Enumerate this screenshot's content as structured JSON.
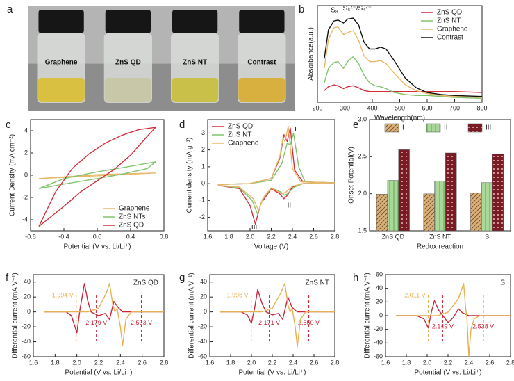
{
  "chart_data": [
    {
      "type": "image",
      "panel": "a",
      "labels": [
        "Graphene",
        "ZnS QD",
        "ZnS NT",
        "Contrast"
      ]
    },
    {
      "type": "line",
      "panel": "b",
      "xlabel": "Wavelength(nm)",
      "ylabel": "Absorbance(a.u.)",
      "xlim": [
        200,
        800
      ],
      "xticks": [
        200,
        300,
        400,
        500,
        600,
        700,
        800
      ],
      "ylim": [
        0,
        1
      ],
      "legend": "upper right",
      "annotations": [
        "S₈",
        "S₆²⁻/S₄²⁻"
      ],
      "series": [
        {
          "name": "ZnS QD",
          "color": "#d22f3c",
          "x": [
            225,
            240,
            260,
            275,
            295,
            310,
            330,
            350,
            370,
            390,
            410,
            430,
            450,
            480,
            520,
            560,
            600,
            650,
            700,
            800
          ],
          "values": [
            0.12,
            0.16,
            0.18,
            0.17,
            0.14,
            0.16,
            0.17,
            0.15,
            0.12,
            0.11,
            0.11,
            0.11,
            0.11,
            0.11,
            0.11,
            0.11,
            0.11,
            0.11,
            0.11,
            0.1
          ]
        },
        {
          "name": "ZnS NT",
          "color": "#82c46e",
          "x": [
            225,
            240,
            260,
            275,
            295,
            310,
            330,
            350,
            370,
            390,
            410,
            430,
            450,
            480,
            520,
            560,
            600,
            650,
            700,
            800
          ],
          "values": [
            0.2,
            0.35,
            0.41,
            0.42,
            0.35,
            0.42,
            0.47,
            0.4,
            0.28,
            0.2,
            0.17,
            0.16,
            0.14,
            0.1,
            0.08,
            0.07,
            0.07,
            0.06,
            0.05,
            0.04
          ]
        },
        {
          "name": "Graphene",
          "color": "#e8b868",
          "x": [
            225,
            240,
            260,
            275,
            295,
            310,
            330,
            350,
            370,
            390,
            410,
            430,
            450,
            480,
            520,
            560,
            600,
            650,
            700,
            800
          ],
          "values": [
            0.35,
            0.65,
            0.77,
            0.78,
            0.7,
            0.72,
            0.74,
            0.64,
            0.48,
            0.42,
            0.42,
            0.43,
            0.4,
            0.3,
            0.18,
            0.12,
            0.09,
            0.07,
            0.06,
            0.05
          ]
        },
        {
          "name": "Contrast",
          "color": "#111111",
          "x": [
            225,
            240,
            260,
            275,
            295,
            310,
            330,
            350,
            370,
            390,
            410,
            430,
            450,
            480,
            520,
            560,
            600,
            650,
            700,
            800
          ],
          "values": [
            0.45,
            0.75,
            0.84,
            0.85,
            0.82,
            0.86,
            0.87,
            0.8,
            0.62,
            0.55,
            0.55,
            0.57,
            0.55,
            0.43,
            0.25,
            0.15,
            0.1,
            0.08,
            0.07,
            0.06
          ]
        }
      ]
    },
    {
      "type": "line",
      "panel": "c",
      "xlabel": "Potential (V vs. Li/Li⁺)",
      "ylabel": "Current Density (mA cm⁻²)",
      "xlim": [
        -0.8,
        0.8
      ],
      "xticks": [
        -0.8,
        -0.4,
        {
          "value": 0,
          "label": "0.0"
        },
        0.4,
        0.8
      ],
      "ylim": [
        -5,
        5
      ],
      "yticks": [
        -4,
        -2,
        0,
        2,
        4
      ],
      "legend": "lower right",
      "series": [
        {
          "name": "Graphene",
          "color": "#e8b868",
          "x": [
            -0.7,
            0,
            0.7,
            0,
            -0.7
          ],
          "values": [
            -0.3,
            -0.05,
            0.2,
            0.05,
            -0.3
          ]
        },
        {
          "name": "ZnS NTs",
          "color": "#82c46e",
          "x": [
            -0.7,
            -0.4,
            0,
            0.4,
            0.7,
            0.6,
            0.3,
            0,
            -0.4,
            -0.7
          ],
          "values": [
            -1.2,
            -0.3,
            0.3,
            0.8,
            1.2,
            0.6,
            0.1,
            -0.3,
            -0.8,
            -1.2
          ]
        },
        {
          "name": "ZnS QD",
          "color": "#d22f3c",
          "x": [
            -0.7,
            -0.5,
            -0.3,
            -0.1,
            0.1,
            0.3,
            0.5,
            0.7,
            0.6,
            0.4,
            0.2,
            0,
            -0.2,
            -0.4,
            -0.6,
            -0.7
          ],
          "values": [
            -4.6,
            -1.5,
            0.6,
            1.9,
            2.9,
            3.6,
            4.1,
            4.3,
            3.5,
            1.8,
            0.5,
            -0.5,
            -1.5,
            -2.8,
            -4,
            -4.6
          ]
        }
      ]
    },
    {
      "type": "line",
      "panel": "d",
      "xlabel": "Voltage (V)",
      "ylabel": "Current density (mA g⁻¹)",
      "xlim": [
        1.6,
        2.8
      ],
      "xticks": [
        1.6,
        1.8,
        {
          "value": 2,
          "label": "2.0"
        },
        2.2,
        2.4,
        2.6,
        2.8
      ],
      "ylim": [
        -2.8,
        3.8
      ],
      "yticks": [
        -2,
        -1,
        0,
        1,
        2,
        3
      ],
      "legend": "upper left",
      "annotations": [
        "I",
        "II",
        "III"
      ],
      "series": [
        {
          "name": "ZnS QD",
          "color": "#d22f3c",
          "x": [
            2.8,
            2.5,
            2.4,
            2.35,
            2.32,
            2.28,
            2.2,
            2.1,
            2.05,
            2,
            1.9,
            1.7,
            1.7,
            2,
            2.2,
            2.28,
            2.32,
            2.35,
            2.38,
            2.42,
            2.5,
            2.8
          ],
          "values": [
            0.05,
            0,
            -0.2,
            -0.7,
            -0.9,
            -0.6,
            -0.3,
            -1.2,
            -2.4,
            -1.3,
            -0.3,
            -0.1,
            -0.05,
            0,
            0.3,
            1.5,
            2.9,
            2.5,
            3.3,
            0.8,
            0.1,
            0.05
          ]
        },
        {
          "name": "ZnS NT",
          "color": "#82c46e",
          "x": [
            2.8,
            2.5,
            2.42,
            2.36,
            2.33,
            2.29,
            2.2,
            2.12,
            2.07,
            2.02,
            1.9,
            1.7,
            1.7,
            2,
            2.2,
            2.3,
            2.35,
            2.38,
            2.41,
            2.46,
            2.52,
            2.8
          ],
          "values": [
            0.05,
            0,
            -0.2,
            -0.55,
            -0.7,
            -0.5,
            -0.25,
            -0.9,
            -1.8,
            -1,
            -0.25,
            -0.1,
            -0.05,
            0,
            0.2,
            1.2,
            2.4,
            2.3,
            3,
            1,
            0.1,
            0.05
          ]
        },
        {
          "name": "Graphene",
          "color": "#e8b868",
          "x": [
            2.8,
            2.5,
            2.4,
            2.34,
            2.3,
            2.26,
            2.2,
            2.13,
            2.08,
            2.03,
            1.9,
            1.7,
            1.7,
            2,
            2.2,
            2.28,
            2.31,
            2.33,
            2.36,
            2.4,
            2.48,
            2.8
          ],
          "values": [
            0.05,
            0,
            -0.15,
            -0.5,
            -0.6,
            -0.45,
            -0.25,
            -0.8,
            -1.6,
            -0.9,
            -0.2,
            -0.1,
            -0.05,
            0,
            0.3,
            1.6,
            2.7,
            2.5,
            3.4,
            0.9,
            0.1,
            0.05
          ]
        }
      ]
    },
    {
      "type": "bar",
      "panel": "e",
      "xlabel": "Redox reaction",
      "ylabel": "Onset Potential(V)",
      "categories": [
        "ZnS QD",
        "ZnS NT",
        "S"
      ],
      "ylim": [
        1.5,
        3.0
      ],
      "yticks": [
        1.5,
        {
          "value": 2,
          "label": "2.0"
        },
        2.5,
        {
          "value": 3,
          "label": "3.0"
        }
      ],
      "legend": "upper center",
      "series": [
        {
          "name": "I",
          "color": "#d9b07a",
          "pattern": "diagonal",
          "values": [
            1.994,
            1.998,
            2.011
          ]
        },
        {
          "name": "II",
          "color": "#a9d89a",
          "pattern": "gradient",
          "values": [
            2.179,
            2.171,
            2.149
          ]
        },
        {
          "name": "III",
          "color": "#7a1a24",
          "pattern": "dots",
          "values": [
            2.593,
            2.55,
            2.538
          ]
        }
      ]
    },
    {
      "type": "line",
      "panel": "f",
      "label": "ZnS QD",
      "xlabel": "Potential (V vs. Li/Li⁺)",
      "ylabel": "Differential current (mA V⁻¹)",
      "xlim": [
        1.6,
        2.8
      ],
      "xticks": [
        1.6,
        1.8,
        {
          "value": 2,
          "label": "2.0"
        },
        2.2,
        2.4,
        2.6,
        2.8
      ],
      "ylim": [
        -60,
        50
      ],
      "yticks": [
        -60,
        -40,
        -20,
        0,
        20,
        40
      ],
      "markers": [
        {
          "value": 1.994,
          "label": "1.994 V",
          "color": "#e8b050"
        },
        {
          "value": 2.179,
          "label": "2.179 V",
          "color": "#c8283a"
        },
        {
          "value": 2.593,
          "label": "2.593 V",
          "color": "#c8283a"
        }
      ],
      "series": [
        {
          "color": "#c8283a",
          "x": [
            1.7,
            1.9,
            1.95,
            2,
            2.03,
            2.07,
            2.1,
            2.13,
            2.2,
            2.26,
            2.3,
            2.34,
            2.38,
            2.42,
            2.6,
            2.8
          ],
          "values": [
            0,
            0,
            -5,
            -28,
            5,
            38,
            15,
            0,
            -5,
            -2,
            -10,
            14,
            6,
            0,
            0,
            0
          ]
        },
        {
          "color": "#e8b050",
          "x": [
            1.7,
            2.1,
            2.2,
            2.27,
            2.3,
            2.33,
            2.35,
            2.37,
            2.4,
            2.42,
            2.45,
            2.5,
            2.8
          ],
          "values": [
            0,
            0,
            5,
            25,
            38,
            10,
            0,
            5,
            -20,
            -45,
            -10,
            0,
            0
          ]
        }
      ]
    },
    {
      "type": "line",
      "panel": "g",
      "label": "ZnS NT",
      "xlabel": "Potential (V vs. Li/Li⁺)",
      "ylabel": "Differential current (mA V⁻¹)",
      "xlim": [
        1.6,
        2.8
      ],
      "xticks": [
        1.6,
        1.8,
        {
          "value": 2,
          "label": "2.0"
        },
        2.2,
        2.4,
        2.6,
        2.8
      ],
      "ylim": [
        -60,
        50
      ],
      "yticks": [
        -60,
        -40,
        -20,
        0,
        20,
        40
      ],
      "markers": [
        {
          "value": 1.998,
          "label": "1.998 V",
          "color": "#e8b050"
        },
        {
          "value": 2.171,
          "label": "2.171 V",
          "color": "#c8283a"
        },
        {
          "value": 2.55,
          "label": "2.550 V",
          "color": "#c8283a"
        }
      ],
      "series": [
        {
          "color": "#c8283a",
          "x": [
            1.7,
            1.9,
            1.96,
            2,
            2.03,
            2.06,
            2.1,
            2.14,
            2.2,
            2.26,
            2.3,
            2.35,
            2.39,
            2.44,
            2.6,
            2.8
          ],
          "values": [
            0,
            0,
            -4,
            -15,
            5,
            30,
            12,
            0,
            -4,
            -2,
            -10,
            20,
            6,
            0,
            0,
            0
          ]
        },
        {
          "color": "#e8b050",
          "x": [
            1.7,
            2.1,
            2.2,
            2.28,
            2.32,
            2.35,
            2.37,
            2.39,
            2.42,
            2.44,
            2.47,
            2.52,
            2.8
          ],
          "values": [
            0,
            0,
            5,
            25,
            38,
            10,
            0,
            5,
            -20,
            -47,
            -10,
            0,
            0
          ]
        }
      ]
    },
    {
      "type": "line",
      "panel": "h",
      "label": "S",
      "xlabel": "Potential (V vs. Li/Li⁺)",
      "ylabel": "Differential current (mA V⁻¹)",
      "xlim": [
        1.6,
        2.8
      ],
      "xticks": [
        1.6,
        1.8,
        {
          "value": 2,
          "label": "2.0"
        },
        2.2,
        2.4,
        2.6,
        2.8
      ],
      "ylim": [
        -60,
        60
      ],
      "yticks": [
        -60,
        -40,
        -20,
        0,
        20,
        40,
        60
      ],
      "markers": [
        {
          "value": 2.011,
          "label": "2.011 V",
          "color": "#e8b050"
        },
        {
          "value": 2.149,
          "label": "2.149 V",
          "color": "#c8283a"
        },
        {
          "value": 2.538,
          "label": "2.538 V",
          "color": "#c8283a"
        }
      ],
      "series": [
        {
          "color": "#c8283a",
          "x": [
            1.7,
            1.9,
            1.97,
            2.01,
            2.04,
            2.07,
            2.11,
            2.15,
            2.2,
            2.25,
            2.3,
            2.34,
            2.4,
            2.6,
            2.8
          ],
          "values": [
            0,
            0,
            -5,
            -18,
            5,
            22,
            8,
            0,
            -10,
            -3,
            10,
            4,
            0,
            0,
            0
          ]
        },
        {
          "color": "#e8b050",
          "x": [
            1.7,
            2.1,
            2.2,
            2.3,
            2.35,
            2.37,
            2.38,
            2.4,
            2.42,
            2.45,
            2.5,
            2.8
          ],
          "values": [
            0,
            0,
            5,
            25,
            47,
            10,
            0,
            -60,
            -20,
            -5,
            0,
            0
          ]
        }
      ]
    }
  ]
}
